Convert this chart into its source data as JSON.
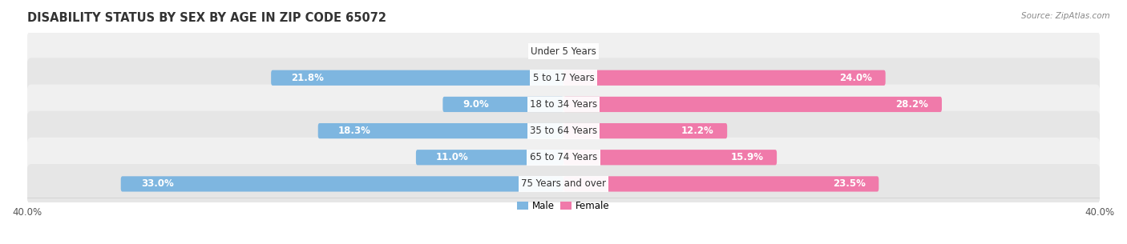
{
  "title": "DISABILITY STATUS BY SEX BY AGE IN ZIP CODE 65072",
  "source": "Source: ZipAtlas.com",
  "categories": [
    "Under 5 Years",
    "5 to 17 Years",
    "18 to 34 Years",
    "35 to 64 Years",
    "65 to 74 Years",
    "75 Years and over"
  ],
  "male_values": [
    0.0,
    21.8,
    9.0,
    18.3,
    11.0,
    33.0
  ],
  "female_values": [
    0.0,
    24.0,
    28.2,
    12.2,
    15.9,
    23.5
  ],
  "male_color": "#7eb6e0",
  "female_color": "#f07aaa",
  "male_color_light": "#b8d5ef",
  "female_color_light": "#f5b0cc",
  "row_bg_odd": "#f0f0f0",
  "row_bg_even": "#e6e6e6",
  "max_val": 40.0,
  "legend_male": "Male",
  "legend_female": "Female",
  "title_fontsize": 10.5,
  "label_fontsize": 8.5,
  "category_fontsize": 8.5,
  "source_fontsize": 7.5,
  "axis_label_fontsize": 8.5
}
